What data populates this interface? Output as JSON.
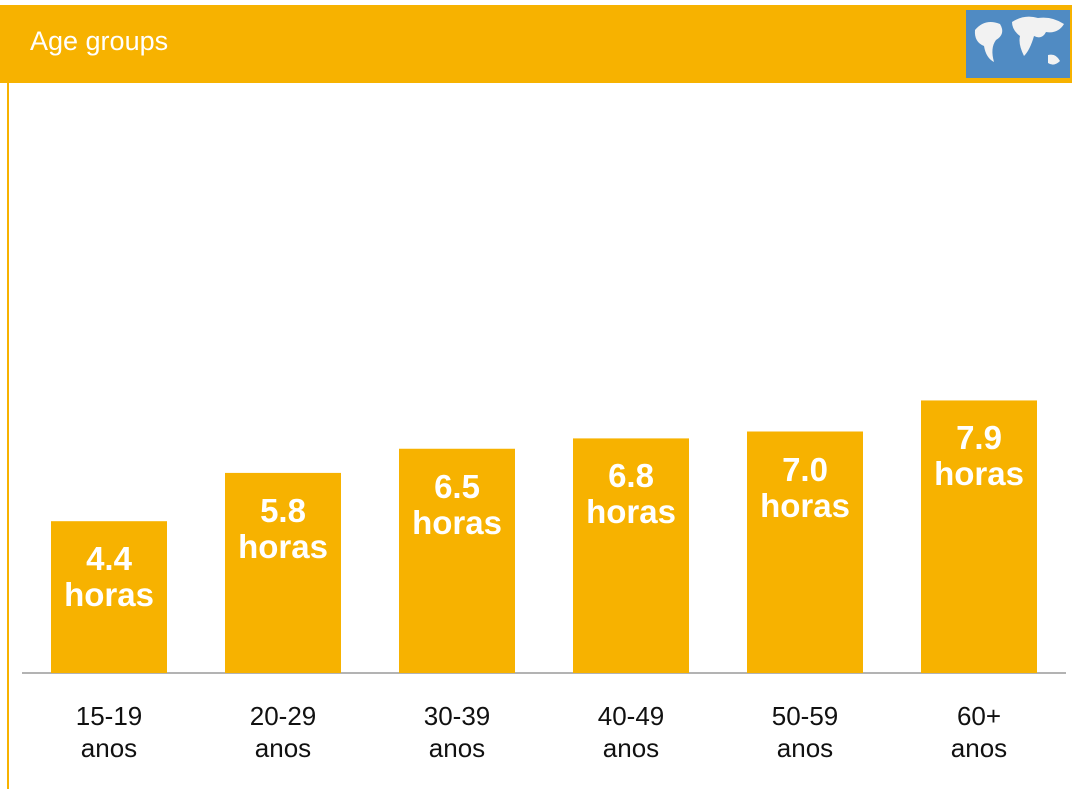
{
  "chart_data": {
    "type": "bar",
    "title": "Age groups",
    "categories": [
      "15-19 anos",
      "20-29 anos",
      "30-39 anos",
      "40-49 anos",
      "50-59 anos",
      "60+ anos"
    ],
    "values": [
      4.4,
      5.8,
      6.5,
      6.8,
      7.0,
      7.9
    ],
    "value_labels": [
      "4.4 horas",
      "5.8 horas",
      "6.5 horas",
      "6.8 horas",
      "7.0 horas",
      "7.9 horas"
    ],
    "color": "#f7b200",
    "ylim": [
      0,
      10
    ],
    "grid": false
  }
}
